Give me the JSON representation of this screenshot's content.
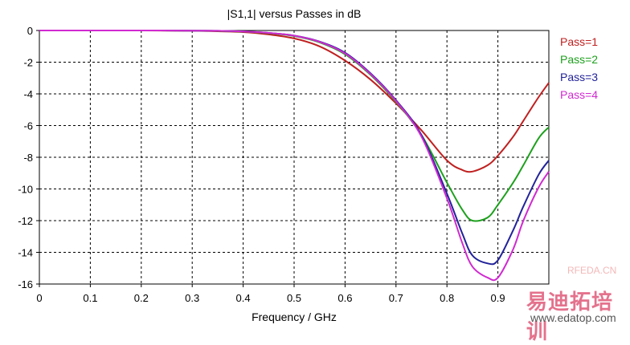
{
  "chart_data": {
    "type": "line",
    "title": "|S1,1| versus Passes in dB",
    "xlabel": "Frequency / GHz",
    "ylabel": "",
    "xlim": [
      0,
      1.0
    ],
    "ylim": [
      -16,
      0
    ],
    "xticks": [
      0,
      0.1,
      0.2,
      0.3,
      0.4,
      0.5,
      0.6,
      0.7,
      0.8,
      0.9
    ],
    "xtick_labels": [
      "0",
      "0.1",
      "0.2",
      "0.3",
      "0.4",
      "0.5",
      "0.6",
      "0.7",
      "0.8",
      "0.9"
    ],
    "yticks": [
      0,
      -2,
      -4,
      -6,
      -8,
      -10,
      -12,
      -14,
      -16
    ],
    "ytick_labels": [
      "0",
      "-2",
      "-4",
      "-6",
      "-8",
      "-10",
      "-12",
      "-14",
      "-16"
    ],
    "grid": true,
    "legend_position": "right",
    "x": [
      0,
      0.1,
      0.2,
      0.3,
      0.35,
      0.4,
      0.45,
      0.5,
      0.55,
      0.6,
      0.65,
      0.7,
      0.75,
      0.8,
      0.83,
      0.85,
      0.88,
      0.9,
      0.93,
      0.95,
      0.98,
      1.0
    ],
    "series": [
      {
        "name": "Pass=1",
        "color": "#c02020",
        "values": [
          0,
          0,
          0,
          -0.02,
          -0.05,
          -0.1,
          -0.25,
          -0.5,
          -1.0,
          -1.9,
          -3.1,
          -4.6,
          -6.3,
          -8.2,
          -8.8,
          -8.9,
          -8.5,
          -7.9,
          -6.7,
          -5.7,
          -4.2,
          -3.3
        ]
      },
      {
        "name": "Pass=2",
        "color": "#1ea01e",
        "values": [
          0,
          0,
          0,
          -0.01,
          -0.03,
          -0.07,
          -0.17,
          -0.35,
          -0.75,
          -1.5,
          -2.8,
          -4.5,
          -6.6,
          -9.6,
          -11.3,
          -12.0,
          -11.8,
          -11.0,
          -9.6,
          -8.5,
          -6.8,
          -6.1
        ]
      },
      {
        "name": "Pass=3",
        "color": "#22229a",
        "values": [
          0,
          0,
          0,
          -0.01,
          -0.02,
          -0.06,
          -0.15,
          -0.32,
          -0.7,
          -1.4,
          -2.7,
          -4.4,
          -6.6,
          -10.3,
          -12.8,
          -14.2,
          -14.7,
          -14.5,
          -12.6,
          -11.1,
          -9.1,
          -8.2
        ]
      },
      {
        "name": "Pass=4",
        "color": "#d02ad0",
        "values": [
          0,
          0,
          0,
          -0.01,
          -0.02,
          -0.06,
          -0.15,
          -0.33,
          -0.72,
          -1.45,
          -2.75,
          -4.45,
          -6.7,
          -10.6,
          -13.4,
          -14.9,
          -15.6,
          -15.6,
          -13.8,
          -12.0,
          -9.9,
          -8.9
        ]
      }
    ]
  },
  "watermark": {
    "chinese_text": "易迪拓培训",
    "url_text": "www.edatop.com",
    "rf_text": "RFEDA.CN"
  }
}
